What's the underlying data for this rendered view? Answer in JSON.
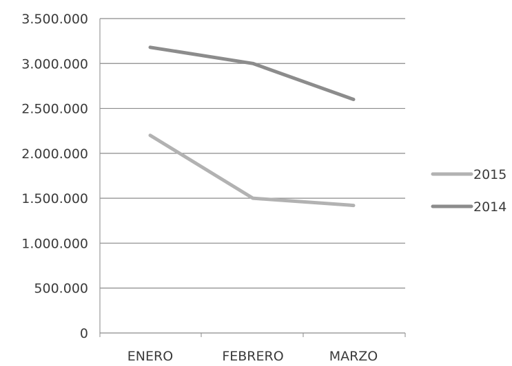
{
  "chart_data": {
    "type": "line",
    "title": "",
    "xlabel": "",
    "ylabel": "",
    "categories": [
      "ENERO",
      "FEBRERO",
      "MARZO"
    ],
    "ylim": [
      0,
      3500000
    ],
    "y_ticks": [
      0,
      500000,
      1000000,
      1500000,
      2000000,
      2500000,
      3000000,
      3500000
    ],
    "y_tick_labels": [
      "0",
      "500.000",
      "1.000.000",
      "1.500.000",
      "2.000.000",
      "2.500.000",
      "3.000.000",
      "3.500.000"
    ],
    "grid": true,
    "legend_position": "right",
    "series": [
      {
        "name": "2015",
        "values": [
          2200000,
          1500000,
          1420000
        ],
        "color": "#b2b2b2"
      },
      {
        "name": "2014",
        "values": [
          3180000,
          3000000,
          2600000
        ],
        "color": "#8c8c8c"
      }
    ]
  }
}
